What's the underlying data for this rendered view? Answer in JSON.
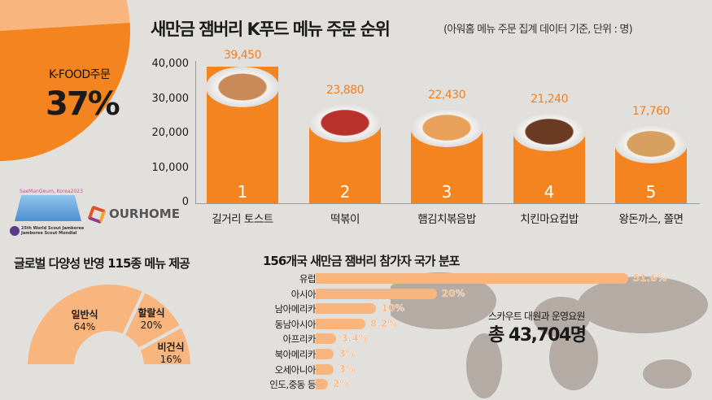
{
  "header": {
    "title": "새만금 잼버리 K푸드 메뉴 주문 순위",
    "subtitle": "(아워홈 메뉴 주문 집계 데이터 기준, 단위 : 명)"
  },
  "kfood": {
    "label": "K-FOOD주문",
    "percent": "37%",
    "share": 37
  },
  "colors": {
    "orange": "#f4841f",
    "light_orange": "#f8b57d",
    "background": "#e2e0dc",
    "map_gray": "#b3aba4"
  },
  "chart_data": [
    {
      "type": "bar",
      "categories": [
        "길거리 토스트",
        "떡볶이",
        "햄김치볶음밥",
        "치킨마요컵밥",
        "왕돈까스, 쫄면"
      ],
      "ranks": [
        "1",
        "2",
        "3",
        "4",
        "5"
      ],
      "values": [
        39450,
        23880,
        22430,
        21240,
        17760
      ],
      "value_labels": [
        "39,450",
        "23,880",
        "22,430",
        "21,240",
        "17,760"
      ],
      "yticks": [
        "40,000",
        "30,000",
        "20,000",
        "10,000",
        "0"
      ],
      "ylim": [
        0,
        40000
      ]
    },
    {
      "type": "pie",
      "title": "글로벌 다양성 반영 115종 메뉴 제공",
      "slices": [
        {
          "label": "일반식",
          "value": 64,
          "text": "64%"
        },
        {
          "label": "할랄식",
          "value": 20,
          "text": "20%"
        },
        {
          "label": "비건식",
          "value": 16,
          "text": "16%"
        }
      ]
    },
    {
      "type": "bar",
      "orientation": "horizontal",
      "title": "156개국 새만금 잼버리 참가자 국가 분포",
      "categories": [
        "유럽",
        "아시아",
        "남아메리카",
        "동남아시아",
        "아프리카",
        "북아메리카",
        "오세아니아",
        "인도,중동 등"
      ],
      "values": [
        51.6,
        20,
        10,
        8.2,
        3.4,
        3,
        3,
        2
      ],
      "value_labels": [
        "51.6%",
        "20%",
        "10%",
        "8.2%",
        "3.4%",
        "3%",
        "3%",
        "2%"
      ]
    }
  ],
  "total": {
    "label": "스카우트 대원과 운영요원",
    "value": "총 43,704명"
  },
  "logos": {
    "jamboree_top": "SaeManGeum, Korea2023",
    "jamboree_bottom1": "25th World Scout Jamboree",
    "jamboree_bottom2": "Jamboree Scout Mondial",
    "ourhome": "OURHOME"
  }
}
